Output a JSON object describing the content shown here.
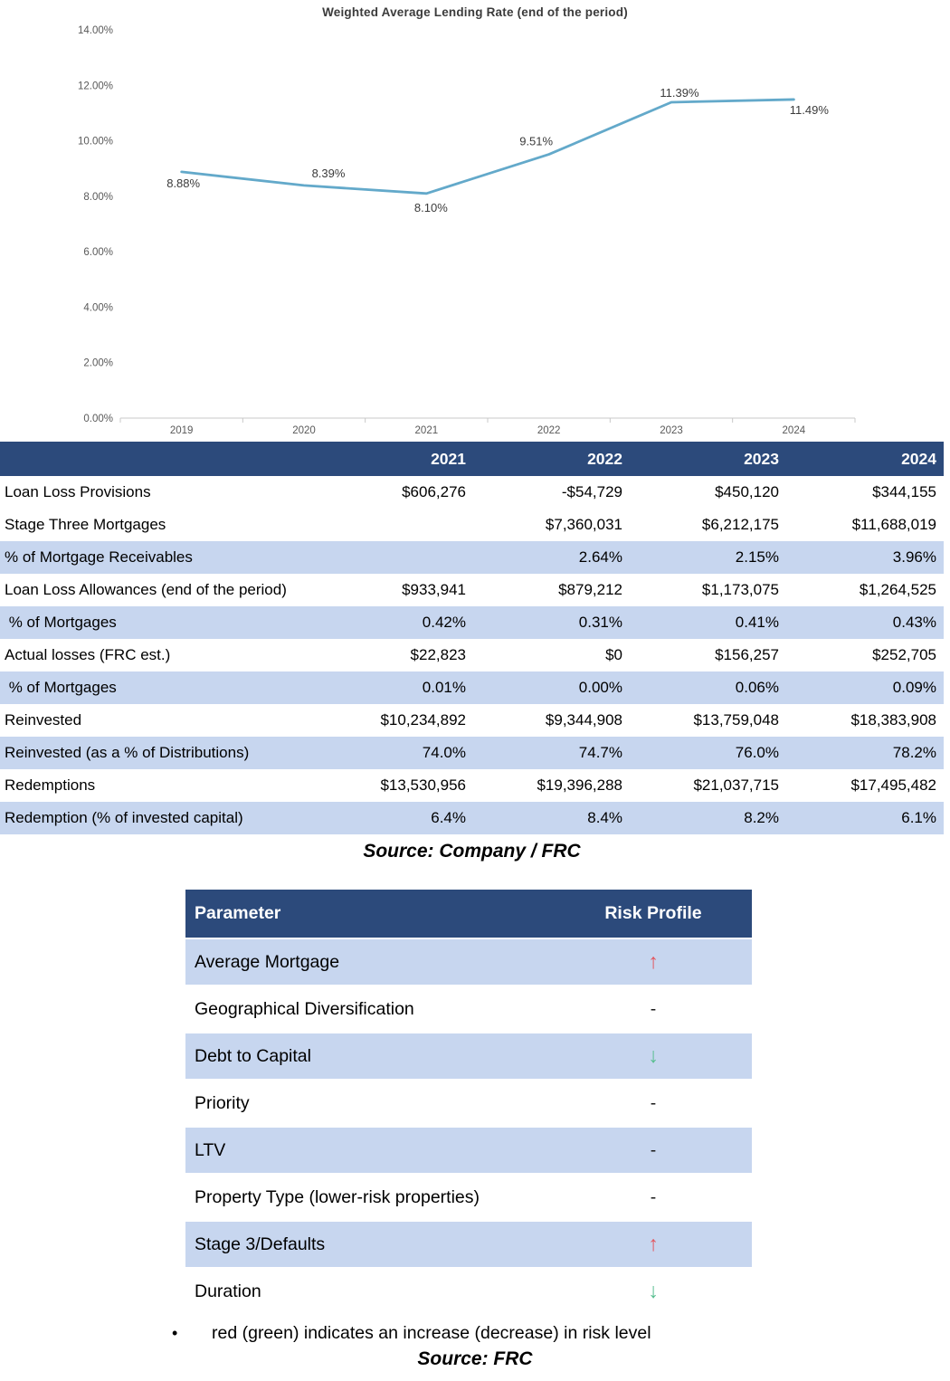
{
  "chart_data": {
    "type": "line",
    "title": "Weighted Average Lending Rate (end of the period)",
    "categories": [
      "2019",
      "2020",
      "2021",
      "2022",
      "2023",
      "2024"
    ],
    "series": [
      {
        "name": "Weighted Average Lending Rate",
        "values": [
          8.88,
          8.39,
          8.1,
          9.51,
          11.39,
          11.49
        ]
      }
    ],
    "point_labels": [
      "8.88%",
      "8.39%",
      "8.10%",
      "9.51%",
      "11.39%",
      "11.49%"
    ],
    "xlabel": "",
    "ylabel": "",
    "ylim": [
      0,
      14
    ],
    "y_tick_step": 2,
    "y_tick_labels": [
      "0.00%",
      "2.00%",
      "4.00%",
      "6.00%",
      "8.00%",
      "10.00%",
      "12.00%",
      "14.00%"
    ],
    "grid": false,
    "legend": "none",
    "line_color": "#63A9CA"
  },
  "table1": {
    "columns": [
      "",
      "2021",
      "2022",
      "2023",
      "2024"
    ],
    "rows": [
      {
        "label": "Loan Loss Provisions",
        "values": [
          "$606,276",
          "-$54,729",
          "$450,120",
          "$344,155"
        ],
        "shaded": false
      },
      {
        "label": "Stage Three Mortgages",
        "values": [
          "",
          "$7,360,031",
          "$6,212,175",
          "$11,688,019"
        ],
        "shaded": false
      },
      {
        "label": "% of Mortgage Receivables",
        "values": [
          "",
          "2.64%",
          "2.15%",
          "3.96%"
        ],
        "shaded": true
      },
      {
        "label": "Loan Loss Allowances (end of the period)",
        "values": [
          "$933,941",
          "$879,212",
          "$1,173,075",
          "$1,264,525"
        ],
        "shaded": false
      },
      {
        "label": " % of Mortgages",
        "values": [
          "0.42%",
          "0.31%",
          "0.41%",
          "0.43%"
        ],
        "shaded": true
      },
      {
        "label": "Actual losses (FRC est.)",
        "values": [
          "$22,823",
          "$0",
          "$156,257",
          "$252,705"
        ],
        "shaded": false
      },
      {
        "label": " % of Mortgages",
        "values": [
          "0.01%",
          "0.00%",
          "0.06%",
          "0.09%"
        ],
        "shaded": true
      },
      {
        "label": "Reinvested",
        "values": [
          "$10,234,892",
          "$9,344,908",
          "$13,759,048",
          "$18,383,908"
        ],
        "shaded": false
      },
      {
        "label": "Reinvested (as a % of Distributions)",
        "values": [
          "74.0%",
          "74.7%",
          "76.0%",
          "78.2%"
        ],
        "shaded": true
      },
      {
        "label": "Redemptions",
        "values": [
          "$13,530,956",
          "$19,396,288",
          "$21,037,715",
          "$17,495,482"
        ],
        "shaded": false
      },
      {
        "label": "Redemption (% of invested capital)",
        "values": [
          "6.4%",
          "8.4%",
          "8.2%",
          "6.1%"
        ],
        "shaded": true
      }
    ],
    "source": "Source: Company / FRC"
  },
  "risk_table": {
    "columns": [
      "Parameter",
      "Risk Profile"
    ],
    "indicators": {
      "up": "↑",
      "down": "↓",
      "neutral": "-"
    },
    "rows": [
      {
        "label": "Average Mortgage",
        "risk": "up",
        "shaded": true
      },
      {
        "label": "Geographical Diversification",
        "risk": "neutral",
        "shaded": false
      },
      {
        "label": "Debt to Capital",
        "risk": "down",
        "shaded": true
      },
      {
        "label": "Priority",
        "risk": "neutral",
        "shaded": false
      },
      {
        "label": "LTV",
        "risk": "neutral",
        "shaded": true
      },
      {
        "label": "Property Type (lower-risk properties)",
        "risk": "neutral",
        "shaded": false
      },
      {
        "label": "Stage 3/Defaults",
        "risk": "up",
        "shaded": true
      },
      {
        "label": "Duration",
        "risk": "down",
        "shaded": false
      }
    ],
    "note": "red (green) indicates an increase (decrease) in risk level",
    "bullet": "•",
    "source": "Source: FRC"
  },
  "colors": {
    "table_header_bg": "#2C4A7B",
    "row_shade": "#C7D6EF",
    "risk_up": "#E2565E",
    "risk_down": "#57BE8F",
    "chart_line": "#63A9CA"
  }
}
